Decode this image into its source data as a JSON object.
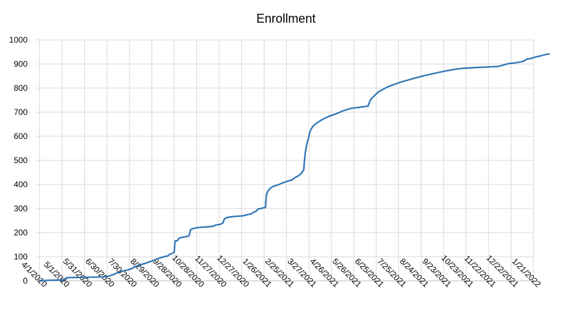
{
  "chart_data": {
    "type": "line",
    "title": "Enrollment",
    "xlabel": "",
    "ylabel": "",
    "x_axis_kind": "date",
    "xlim": [
      "2020-03-27",
      "2022-01-21"
    ],
    "ylim": [
      0,
      1000
    ],
    "y_ticks": [
      0,
      100,
      200,
      300,
      400,
      500,
      600,
      700,
      800,
      900,
      1000
    ],
    "x_tick_dates": [
      "2020-04-01",
      "2020-05-01",
      "2020-05-31",
      "2020-06-30",
      "2020-07-30",
      "2020-08-29",
      "2020-09-28",
      "2020-10-28",
      "2020-11-27",
      "2020-12-27",
      "2021-01-26",
      "2021-02-25",
      "2021-03-27",
      "2021-04-26",
      "2021-05-26",
      "2021-06-25",
      "2021-07-25",
      "2021-08-24",
      "2021-09-23",
      "2021-10-23",
      "2021-11-22",
      "2021-12-22",
      "2022-01-21"
    ],
    "x_tick_labels": [
      "4/1/2020",
      "5/1/2020",
      "5/31/2020",
      "6/30/2020",
      "7/30/2020",
      "8/29/2020",
      "9/28/2020",
      "10/28/2020",
      "11/27/2020",
      "12/27/2020",
      "1/26/2021",
      "2/25/2021",
      "3/27/2021",
      "4/26/2021",
      "5/26/2021",
      "6/25/2021",
      "7/25/2021",
      "8/24/2021",
      "9/23/2021",
      "10/23/2021",
      "11/22/2021",
      "12/22/2021",
      "1/21/2022"
    ],
    "grid": true,
    "line_color": "#2e75b6",
    "series": [
      {
        "name": "",
        "points": [
          [
            "2020-04-01",
            1
          ],
          [
            "2020-04-12",
            2
          ],
          [
            "2020-04-25",
            3
          ],
          [
            "2020-05-06",
            4
          ],
          [
            "2020-05-07",
            13
          ],
          [
            "2020-05-20",
            14
          ],
          [
            "2020-06-06",
            15
          ],
          [
            "2020-06-24",
            16
          ],
          [
            "2020-07-01",
            18
          ],
          [
            "2020-07-08",
            25
          ],
          [
            "2020-07-13",
            32
          ],
          [
            "2020-07-18",
            38
          ],
          [
            "2020-07-23",
            42
          ],
          [
            "2020-07-28",
            45
          ],
          [
            "2020-08-03",
            52
          ],
          [
            "2020-08-06",
            58
          ],
          [
            "2020-08-10",
            63
          ],
          [
            "2020-08-15",
            68
          ],
          [
            "2020-08-20",
            72
          ],
          [
            "2020-08-25",
            78
          ],
          [
            "2020-08-30",
            83
          ],
          [
            "2020-09-04",
            90
          ],
          [
            "2020-09-09",
            95
          ],
          [
            "2020-09-14",
            100
          ],
          [
            "2020-09-19",
            103
          ],
          [
            "2020-09-22",
            110
          ],
          [
            "2020-09-26",
            115
          ],
          [
            "2020-09-28",
            120
          ],
          [
            "2020-09-29",
            165
          ],
          [
            "2020-10-02",
            166
          ],
          [
            "2020-10-04",
            176
          ],
          [
            "2020-10-08",
            180
          ],
          [
            "2020-10-13",
            183
          ],
          [
            "2020-10-17",
            186
          ],
          [
            "2020-10-18",
            190
          ],
          [
            "2020-10-20",
            213
          ],
          [
            "2020-10-23",
            217
          ],
          [
            "2020-10-27",
            220
          ],
          [
            "2020-11-02",
            222
          ],
          [
            "2020-11-11",
            224
          ],
          [
            "2020-11-18",
            226
          ],
          [
            "2020-11-23",
            232
          ],
          [
            "2020-11-28",
            234
          ],
          [
            "2020-12-02",
            240
          ],
          [
            "2020-12-04",
            257
          ],
          [
            "2020-12-08",
            263
          ],
          [
            "2020-12-14",
            266
          ],
          [
            "2020-12-21",
            268
          ],
          [
            "2020-12-29",
            270
          ],
          [
            "2021-01-04",
            275
          ],
          [
            "2021-01-09",
            278
          ],
          [
            "2021-01-12",
            285
          ],
          [
            "2021-01-15",
            288
          ],
          [
            "2021-01-18",
            298
          ],
          [
            "2021-01-24",
            302
          ],
          [
            "2021-01-28",
            305
          ],
          [
            "2021-01-29",
            355
          ],
          [
            "2021-01-31",
            372
          ],
          [
            "2021-02-03",
            383
          ],
          [
            "2021-02-06",
            390
          ],
          [
            "2021-02-10",
            395
          ],
          [
            "2021-02-15",
            400
          ],
          [
            "2021-02-21",
            408
          ],
          [
            "2021-02-27",
            414
          ],
          [
            "2021-03-04",
            418
          ],
          [
            "2021-03-08",
            428
          ],
          [
            "2021-03-13",
            436
          ],
          [
            "2021-03-17",
            447
          ],
          [
            "2021-03-20",
            460
          ],
          [
            "2021-03-21",
            500
          ],
          [
            "2021-03-22",
            530
          ],
          [
            "2021-03-24",
            565
          ],
          [
            "2021-03-27",
            600
          ],
          [
            "2021-03-28",
            615
          ],
          [
            "2021-03-29",
            625
          ],
          [
            "2021-04-01",
            640
          ],
          [
            "2021-04-05",
            652
          ],
          [
            "2021-04-09",
            660
          ],
          [
            "2021-04-13",
            668
          ],
          [
            "2021-04-19",
            678
          ],
          [
            "2021-04-25",
            685
          ],
          [
            "2021-05-01",
            692
          ],
          [
            "2021-05-06",
            698
          ],
          [
            "2021-05-11",
            705
          ],
          [
            "2021-05-16",
            710
          ],
          [
            "2021-05-21",
            715
          ],
          [
            "2021-05-27",
            718
          ],
          [
            "2021-06-02",
            720
          ],
          [
            "2021-06-08",
            723
          ],
          [
            "2021-06-14",
            725
          ],
          [
            "2021-06-15",
            735
          ],
          [
            "2021-06-18",
            755
          ],
          [
            "2021-06-23",
            770
          ],
          [
            "2021-06-28",
            785
          ],
          [
            "2021-07-04",
            795
          ],
          [
            "2021-07-10",
            805
          ],
          [
            "2021-07-16",
            812
          ],
          [
            "2021-07-23",
            820
          ],
          [
            "2021-07-31",
            828
          ],
          [
            "2021-08-08",
            835
          ],
          [
            "2021-08-16",
            842
          ],
          [
            "2021-08-26",
            850
          ],
          [
            "2021-09-06",
            858
          ],
          [
            "2021-09-16",
            865
          ],
          [
            "2021-09-27",
            872
          ],
          [
            "2021-10-08",
            878
          ],
          [
            "2021-10-18",
            882
          ],
          [
            "2021-10-28",
            884
          ],
          [
            "2021-11-10",
            886
          ],
          [
            "2021-11-24",
            888
          ],
          [
            "2021-12-05",
            890
          ],
          [
            "2021-12-13",
            897
          ],
          [
            "2021-12-19",
            902
          ],
          [
            "2021-12-26",
            904
          ],
          [
            "2022-01-03",
            908
          ],
          [
            "2022-01-08",
            912
          ],
          [
            "2022-01-12",
            920
          ],
          [
            "2022-01-19",
            924
          ],
          [
            "2022-01-25",
            930
          ],
          [
            "2022-02-01",
            935
          ],
          [
            "2022-02-07",
            940
          ],
          [
            "2022-02-11",
            942
          ]
        ]
      }
    ]
  }
}
